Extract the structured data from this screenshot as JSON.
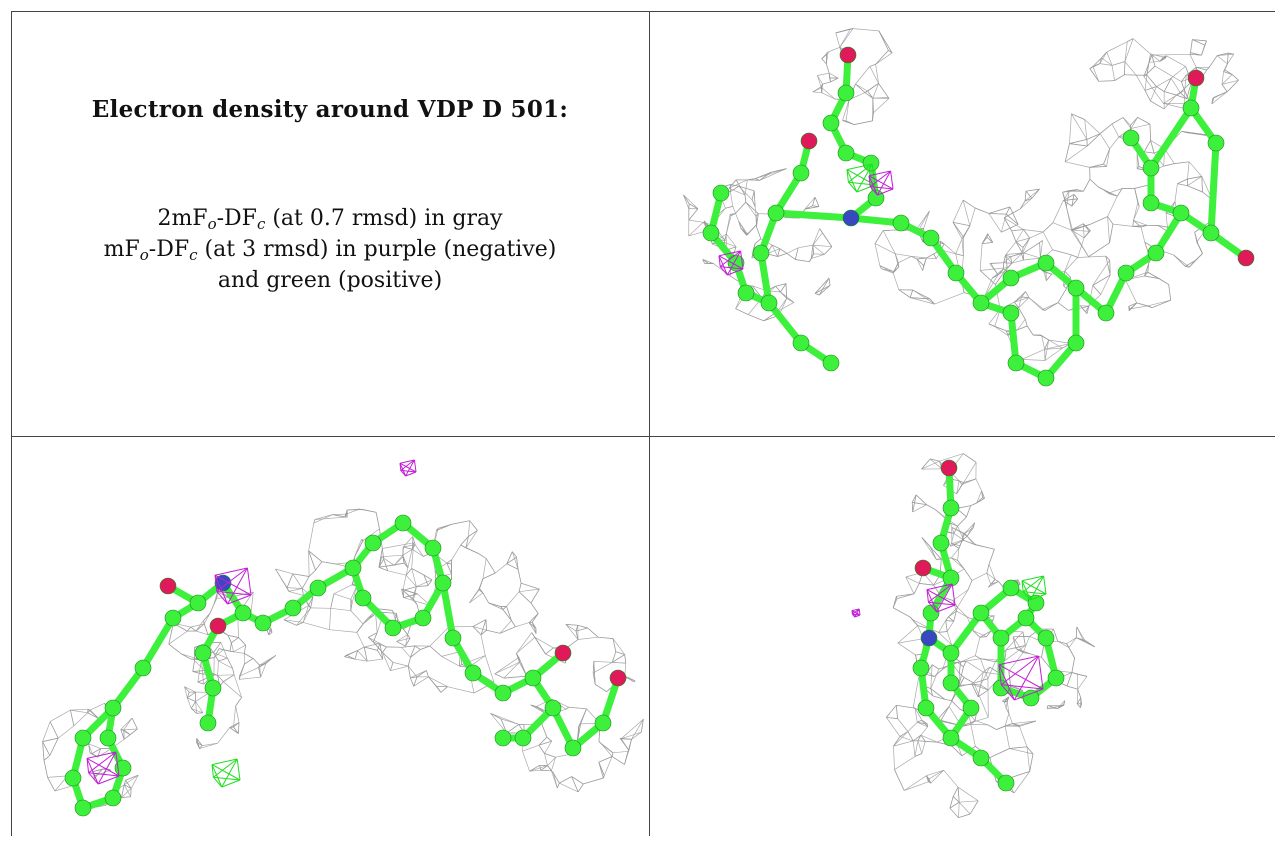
{
  "caption": {
    "title": "Electron density around VDP D 501:",
    "line1_prefix": "2mF",
    "line1_sub1": "o",
    "line1_mid": "-DF",
    "line1_sub2": "c",
    "line1_suffix": " (at 0.7 rmsd) in gray",
    "line2_prefix": "mF",
    "line2_sub1": "o",
    "line2_mid": "-DF",
    "line2_sub2": "c",
    "line2_suffix": " (at 3 rmsd) in purple (negative)",
    "line3": "and green (positive)"
  },
  "colors": {
    "density_2fofc": "#9a9a9a",
    "diff_negative": "#c21fd6",
    "diff_positive": "#22dd22",
    "carbon": "#3cf03c",
    "oxygen": "#e0195a",
    "nitrogen": "#3848c0"
  },
  "panels": [
    {
      "name": "view-top-right"
    },
    {
      "name": "view-bottom-left"
    },
    {
      "name": "view-bottom-right"
    }
  ]
}
